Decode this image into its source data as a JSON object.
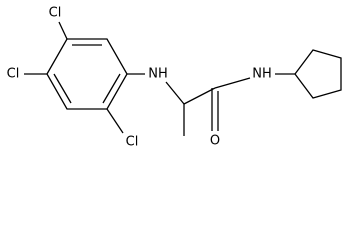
{
  "atoms": [
    "Cl",
    "Cl",
    "Cl",
    "NH",
    "NH",
    "O"
  ]
}
